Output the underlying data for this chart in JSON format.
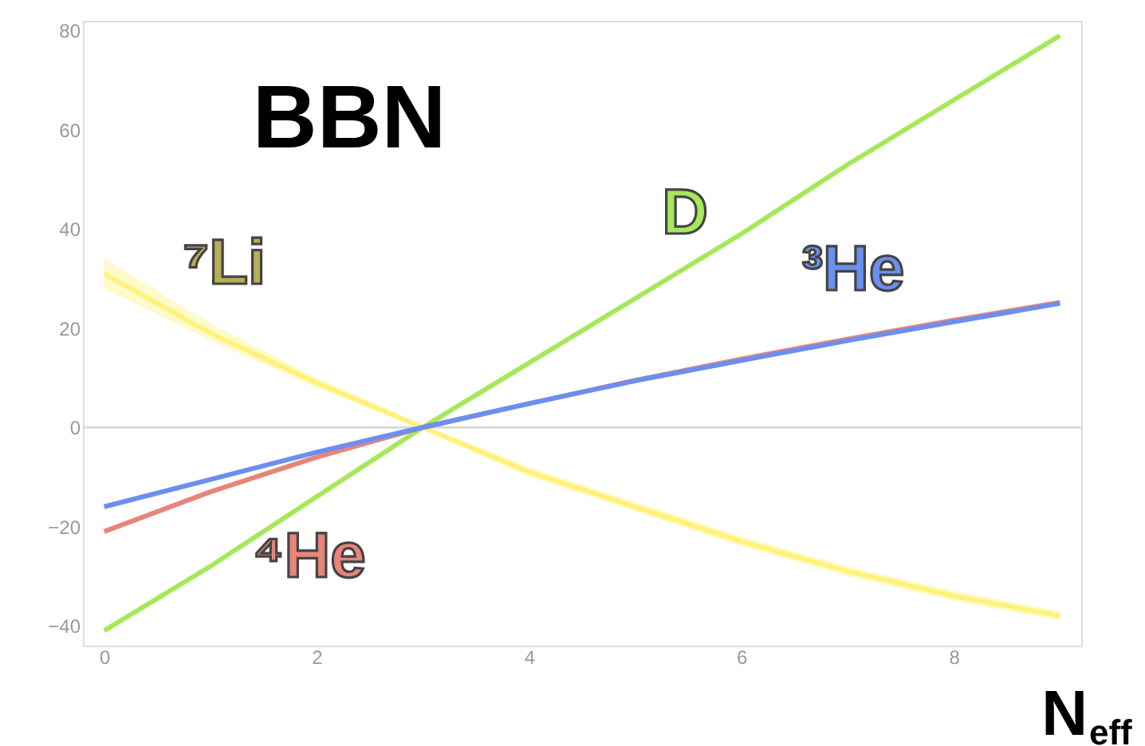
{
  "chart_data": {
    "type": "line",
    "title": "BBN",
    "xlabel": "N$_{eff}$",
    "x": [
      0,
      1,
      2,
      3,
      4,
      5,
      6,
      7,
      8,
      9
    ],
    "xlim": [
      -0.2,
      9.2
    ],
    "ylim": [
      -44,
      82
    ],
    "xticks": [
      0,
      2,
      4,
      6,
      8
    ],
    "yticks": [
      -40,
      -20,
      0,
      20,
      40,
      60,
      80
    ],
    "grid": false,
    "marker": "none",
    "line_style": "solid",
    "ref_lines": [
      {
        "axis": "y",
        "value": 0,
        "color": "#d9d9d9"
      }
    ],
    "series": [
      {
        "name": "⁷Li",
        "color": "#fff27a",
        "values": [
          31,
          19,
          9,
          0,
          -9,
          -16,
          -23,
          -29,
          -34,
          -38
        ],
        "lower": [
          28,
          17.5,
          8,
          -0.5,
          -10,
          -17,
          -24,
          -30,
          -35,
          -39
        ],
        "upper": [
          34,
          21,
          10,
          0.5,
          -8,
          -15,
          -22,
          -28,
          -33,
          -37
        ]
      },
      {
        "name": "D",
        "color": "#a6e85a",
        "values": [
          -41,
          -28,
          -14,
          0,
          13,
          26,
          39,
          53,
          66,
          79
        ]
      },
      {
        "name": "⁴He",
        "color": "#e8847a",
        "values": [
          -21,
          -13,
          -6,
          0,
          4.8,
          9.5,
          13.8,
          17.8,
          21.6,
          25.2
        ]
      },
      {
        "name": "³He",
        "color": "#6b8ff0",
        "values": [
          -16,
          -10.5,
          -5,
          0,
          4.8,
          9.4,
          13.5,
          17.5,
          21.3,
          25
        ]
      }
    ]
  }
}
